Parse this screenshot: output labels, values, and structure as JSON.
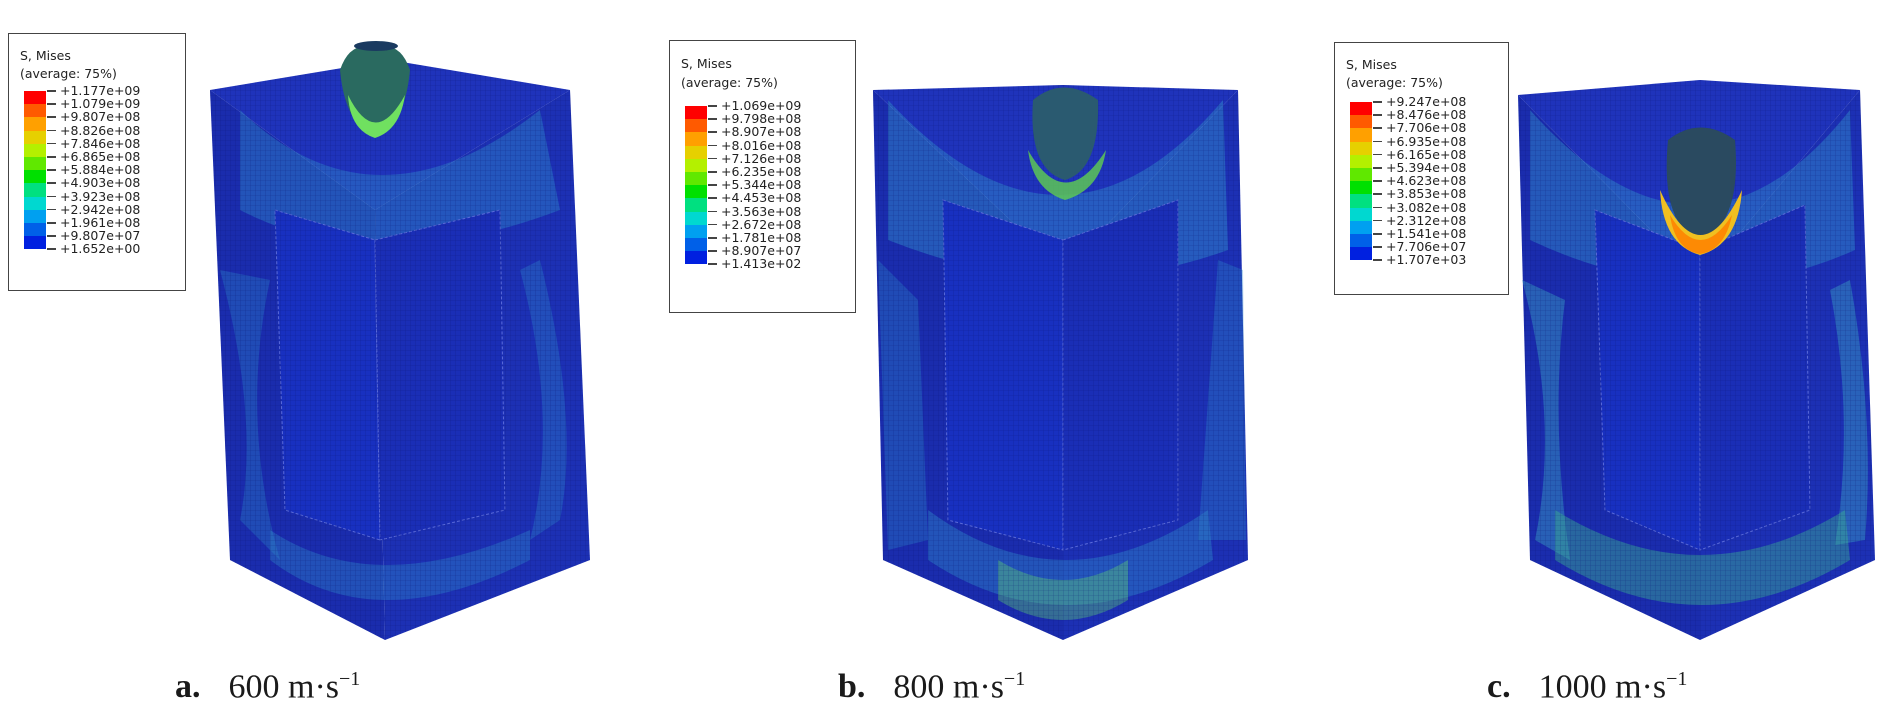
{
  "panels": [
    {
      "letter": "a.",
      "speed": "600",
      "unit_main": "m·s",
      "unit_exp": "−1",
      "legend_title": "S, Mises",
      "legend_sub": "(average: 75%)",
      "legend_values": [
        "+1.177e+09",
        "+1.079e+09",
        "+9.807e+08",
        "+8.826e+08",
        "+7.846e+08",
        "+6.865e+08",
        "+5.884e+08",
        "+4.903e+08",
        "+3.923e+08",
        "+2.942e+08",
        "+1.961e+08",
        "+9.807e+07",
        "+1.652e+00"
      ]
    },
    {
      "letter": "b.",
      "speed": "800",
      "unit_main": "m·s",
      "unit_exp": "−1",
      "legend_title": "S, Mises",
      "legend_sub": "(average: 75%)",
      "legend_values": [
        "+1.069e+09",
        "+9.798e+08",
        "+8.907e+08",
        "+8.016e+08",
        "+7.126e+08",
        "+6.235e+08",
        "+5.344e+08",
        "+4.453e+08",
        "+3.563e+08",
        "+2.672e+08",
        "+1.781e+08",
        "+8.907e+07",
        "+1.413e+02"
      ]
    },
    {
      "letter": "c.",
      "speed": "1000",
      "unit_main": "m·s",
      "unit_exp": "−1",
      "legend_title": "S, Mises",
      "legend_sub": "(average: 75%)",
      "legend_values": [
        "+9.247e+08",
        "+8.476e+08",
        "+7.706e+08",
        "+6.935e+08",
        "+6.165e+08",
        "+5.394e+08",
        "+4.623e+08",
        "+3.853e+08",
        "+3.082e+08",
        "+2.312e+08",
        "+1.541e+08",
        "+7.706e+07",
        "+1.707e+03"
      ]
    }
  ],
  "colors": {
    "contour": [
      "#ff0000",
      "#ff5a00",
      "#ffa000",
      "#e6d000",
      "#b4f000",
      "#60e800",
      "#00e000",
      "#00e080",
      "#00d8d0",
      "#00a0f0",
      "#0060e8",
      "#0020e0"
    ],
    "model_base": "#1a2fb8",
    "model_dark": "#1424a0",
    "model_light": "#2a52c8",
    "halo": "#2f86c8"
  }
}
